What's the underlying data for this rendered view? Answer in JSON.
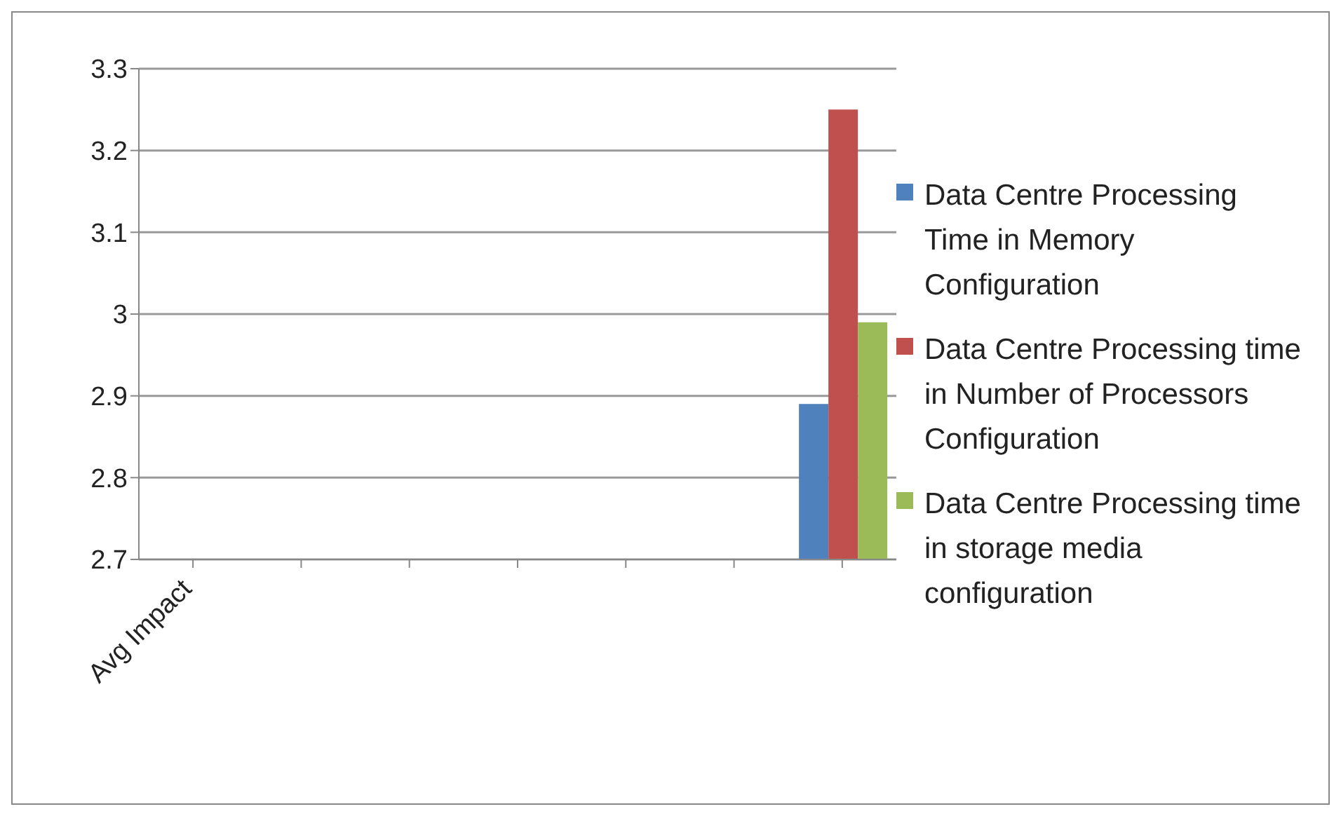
{
  "chart_data": {
    "type": "bar",
    "categories": [
      "Avg Impact",
      null,
      null,
      null,
      null,
      null,
      null
    ],
    "series": [
      {
        "name": "Data Centre Processing Time in Memory Configuration",
        "color": "#4f81bd",
        "values": [
          null,
          null,
          null,
          null,
          null,
          null,
          2.89
        ]
      },
      {
        "name": "Data Centre Processing time in Number of Processors Configuration",
        "color": "#c0504d",
        "values": [
          null,
          null,
          null,
          null,
          null,
          null,
          3.25
        ]
      },
      {
        "name": "Data Centre Processing time in storage media configuration",
        "color": "#9bbb59",
        "values": [
          null,
          null,
          null,
          null,
          null,
          null,
          2.99
        ]
      }
    ],
    "ylim": [
      2.7,
      3.3
    ],
    "yticks": [
      2.7,
      2.8,
      2.9,
      3,
      3.1,
      3.2,
      3.3
    ],
    "grid": "y",
    "legend": "right"
  }
}
